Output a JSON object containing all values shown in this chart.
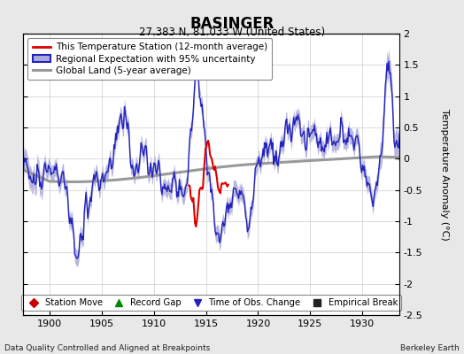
{
  "title": "BASINGER",
  "subtitle": "27.383 N, 81.033 W (United States)",
  "xlabel_bottom": "Data Quality Controlled and Aligned at Breakpoints",
  "xlabel_right": "Berkeley Earth",
  "ylabel": "Temperature Anomaly (°C)",
  "xlim": [
    1897.5,
    1933.5
  ],
  "ylim": [
    -2.5,
    2.0
  ],
  "yticks": [
    -2.5,
    -2.0,
    -1.5,
    -1.0,
    -0.5,
    0.0,
    0.5,
    1.0,
    1.5,
    2.0
  ],
  "xticks": [
    1900,
    1905,
    1910,
    1915,
    1920,
    1925,
    1930
  ],
  "bg_color": "#e8e8e8",
  "plot_bg_color": "#ffffff",
  "grid_color": "#cccccc",
  "regional_color": "#2222bb",
  "regional_fill_color": "#aaaadd",
  "station_color": "#dd0000",
  "global_color": "#999999",
  "legend_labels": [
    "This Temperature Station (12-month average)",
    "Regional Expectation with 95% uncertainty",
    "Global Land (5-year average)"
  ],
  "bottom_legend": [
    {
      "marker": "D",
      "color": "#cc0000",
      "label": "Station Move"
    },
    {
      "marker": "^",
      "color": "#008800",
      "label": "Record Gap"
    },
    {
      "marker": "v",
      "color": "#2222bb",
      "label": "Time of Obs. Change"
    },
    {
      "marker": "s",
      "color": "#222222",
      "label": "Empirical Break"
    }
  ],
  "regional_keypoints": {
    "years": [
      1898,
      1899,
      1900,
      1901,
      1902,
      1903,
      1904,
      1905,
      1906,
      1907,
      1908,
      1909,
      1910,
      1911,
      1912,
      1913,
      1914,
      1915,
      1916,
      1917,
      1918,
      1919,
      1920,
      1921,
      1922,
      1923,
      1924,
      1925,
      1926,
      1927,
      1928,
      1929,
      1930,
      1931,
      1932,
      1933
    ],
    "values": [
      -0.2,
      -0.3,
      -0.15,
      -0.4,
      -0.5,
      -0.9,
      -0.6,
      -0.3,
      -0.1,
      0.3,
      0.1,
      -0.2,
      -0.1,
      -0.5,
      -0.4,
      -0.5,
      0.9,
      0.1,
      -0.8,
      -0.7,
      -0.3,
      -0.7,
      -0.1,
      0.3,
      0.1,
      0.4,
      0.5,
      0.4,
      0.3,
      0.2,
      0.4,
      0.3,
      -0.1,
      -0.8,
      0.5,
      1.0
    ]
  },
  "global_keypoints": {
    "years": [
      1898,
      1903,
      1908,
      1913,
      1918,
      1923,
      1928,
      1933
    ],
    "values": [
      -0.35,
      -0.38,
      -0.32,
      -0.2,
      -0.1,
      -0.05,
      0.0,
      0.05
    ]
  },
  "station_start": 1913.3,
  "station_end": 1917.2,
  "station_keypoints": {
    "years": [
      1913.3,
      1913.8,
      1914.0,
      1914.3,
      1914.7,
      1915.0,
      1915.3,
      1915.7,
      1916.0,
      1916.5,
      1917.0,
      1917.2
    ],
    "values": [
      -0.5,
      -0.6,
      -1.1,
      -0.7,
      -0.4,
      0.3,
      0.2,
      -0.1,
      -0.3,
      -0.4,
      -0.3,
      -0.4
    ]
  }
}
